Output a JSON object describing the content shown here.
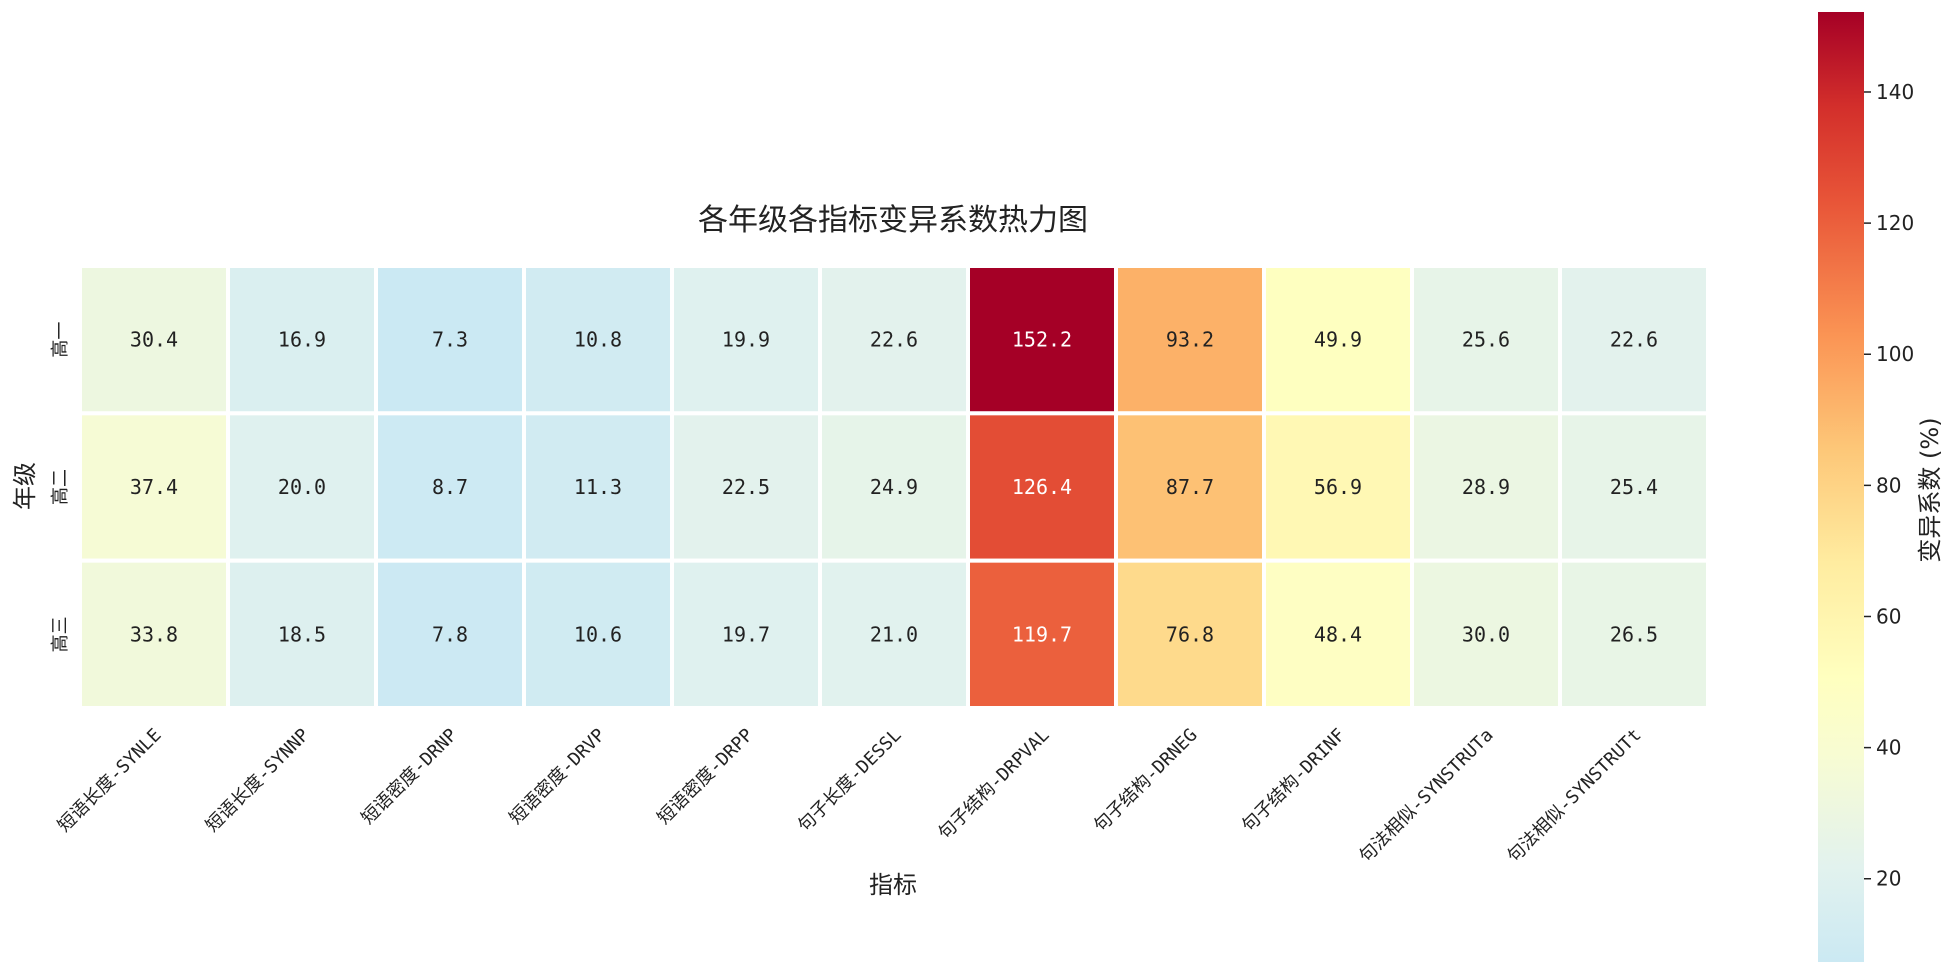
{
  "chart_data": {
    "type": "heatmap",
    "title": "各年级各指标变异系数热力图",
    "xlabel": "指标",
    "ylabel": "年级",
    "colorbar_label": "变异系数 (%)",
    "x": [
      "短语长度-SYNLE",
      "短语长度-SYNNP",
      "短语密度-DRNP",
      "短语密度-DRVP",
      "短语密度-DRPP",
      "句子长度-DESSL",
      "句子结构-DRPVAL",
      "句子结构-DRNEG",
      "句子结构-DRINF",
      "句法相似-SYNSTRUTa",
      "句法相似-SYNSTRUTt"
    ],
    "y": [
      "高一",
      "高二",
      "高三"
    ],
    "values": [
      [
        30.4,
        16.9,
        7.3,
        10.8,
        19.9,
        22.6,
        152.2,
        93.2,
        49.9,
        25.6,
        22.6
      ],
      [
        37.4,
        20.0,
        8.7,
        11.3,
        22.5,
        24.9,
        126.4,
        87.7,
        56.9,
        28.9,
        25.4
      ],
      [
        33.8,
        18.5,
        7.8,
        10.6,
        19.7,
        21.0,
        119.7,
        76.8,
        48.4,
        30.0,
        26.5
      ]
    ],
    "labels": [
      [
        "30.4",
        "16.9",
        "7.3",
        "10.8",
        "19.9",
        "22.6",
        "152.2",
        "93.2",
        "49.9",
        "25.6",
        "22.6"
      ],
      [
        "37.4",
        "20.0",
        "8.7",
        "11.3",
        "22.5",
        "24.9",
        "126.4",
        "87.7",
        "56.9",
        "28.9",
        "25.4"
      ],
      [
        "33.8",
        "18.5",
        "7.8",
        "10.6",
        "19.7",
        "21.0",
        "119.7",
        "76.8",
        "48.4",
        "30.0",
        "26.5"
      ]
    ],
    "colormap": "RdYlBu_r",
    "color_range": [
      7.3,
      152.2
    ],
    "colorbar_ticks": [
      20,
      40,
      60,
      80,
      100,
      120,
      140
    ],
    "colorbar_tick_labels": [
      "20",
      "40",
      "60",
      "80",
      "100",
      "120",
      "140"
    ]
  }
}
